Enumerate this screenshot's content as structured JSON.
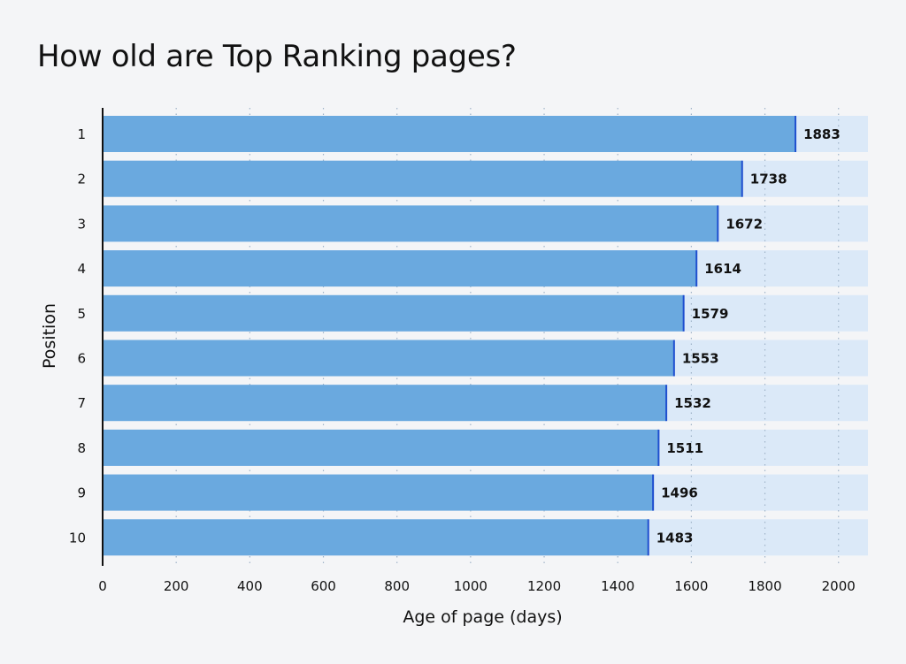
{
  "chart_data": {
    "type": "bar",
    "orientation": "horizontal",
    "title": "How old are Top Ranking pages?",
    "xlabel": "Age of page (days)",
    "ylabel": "Position",
    "categories": [
      "1",
      "2",
      "3",
      "4",
      "5",
      "6",
      "7",
      "8",
      "9",
      "10"
    ],
    "values": [
      1883,
      1738,
      1672,
      1614,
      1579,
      1553,
      1532,
      1511,
      1496,
      1483
    ],
    "xlim": [
      0,
      2080
    ],
    "xticks": [
      0,
      200,
      400,
      600,
      800,
      1000,
      1200,
      1400,
      1600,
      1800,
      2000
    ],
    "grid": "vertical dotted",
    "legend": "none",
    "data_labels": true,
    "colors": {
      "bar": "#6aa9df",
      "bar_end_line": "#1f4fcf",
      "track": "#dbe9f8",
      "grid": "#9fb3c8",
      "axis": "#111111",
      "background": "#f4f5f7"
    }
  }
}
